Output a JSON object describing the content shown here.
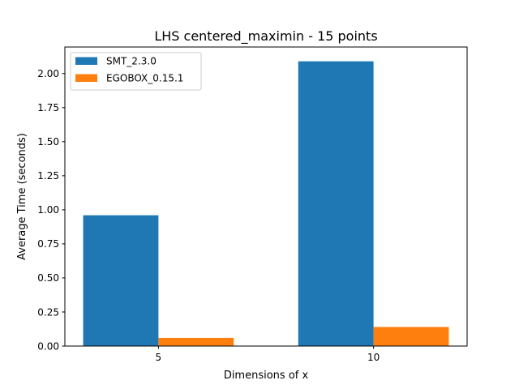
{
  "chart_data": {
    "type": "bar",
    "title": "LHS centered_maximin - 15 points",
    "xlabel": "Dimensions of x",
    "ylabel": "Average Time (seconds)",
    "categories": [
      "5",
      "10"
    ],
    "series": [
      {
        "name": "SMT_2.3.0",
        "color": "#1f77b4",
        "values": [
          0.96,
          2.09
        ]
      },
      {
        "name": "EGOBOX_0.15.1",
        "color": "#ff7f0e",
        "values": [
          0.06,
          0.14
        ]
      }
    ],
    "ylim": [
      0,
      2.195
    ],
    "yticks": [
      0,
      0.25,
      0.5,
      0.75,
      1.0,
      1.25,
      1.5,
      1.75,
      2.0
    ],
    "ytick_labels": [
      "0.00",
      "0.25",
      "0.50",
      "0.75",
      "1.00",
      "1.25",
      "1.50",
      "1.75",
      "2.00"
    ],
    "grid": false,
    "legend_position": "top-left"
  }
}
